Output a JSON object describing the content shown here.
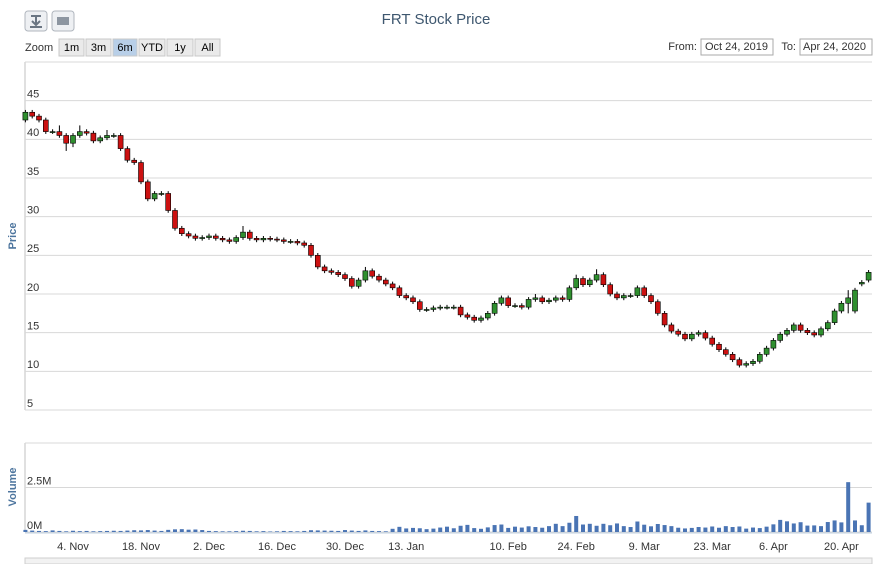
{
  "chart_data": {
    "type": "candlestick",
    "title": "FRT Stock Price",
    "range_selector": {
      "label": "Zoom",
      "buttons": [
        "1m",
        "3m",
        "6m",
        "YTD",
        "1y",
        "All"
      ],
      "selected": 2
    },
    "from_label": "From:",
    "from_value": "Oct 24, 2019",
    "to_label": "To:",
    "to_value": "Apr 24, 2020",
    "ylabel": "Price",
    "y2label": "Volume",
    "up_color": "#2f8f2f",
    "down_color": "#cc1111",
    "volume_color": "#4a74b4",
    "grid": true,
    "ylim": [
      5,
      50
    ],
    "yticks": [
      5,
      10,
      15,
      20,
      25,
      30,
      35,
      40,
      45
    ],
    "y2lim": [
      0,
      5000000
    ],
    "y2ticks": [
      {
        "value": 0,
        "label": "0M"
      },
      {
        "value": 2500000,
        "label": "2.5M"
      }
    ],
    "categories": [
      null,
      null,
      null,
      null,
      null,
      null,
      null,
      "4. Nov",
      null,
      null,
      null,
      null,
      null,
      null,
      null,
      null,
      null,
      "18. Nov",
      null,
      null,
      null,
      null,
      null,
      null,
      null,
      null,
      null,
      "2. Dec",
      null,
      null,
      null,
      null,
      null,
      null,
      null,
      null,
      null,
      "16. Dec",
      null,
      null,
      null,
      null,
      null,
      null,
      null,
      null,
      null,
      "30. Dec",
      null,
      null,
      null,
      null,
      null,
      null,
      null,
      null,
      "13. Jan",
      null,
      null,
      null,
      null,
      null,
      null,
      null,
      null,
      null,
      null,
      null,
      null,
      null,
      null,
      "10. Feb",
      null,
      null,
      null,
      null,
      null,
      null,
      null,
      null,
      null,
      "24. Feb",
      null,
      null,
      null,
      null,
      null,
      null,
      null,
      null,
      null,
      "9. Mar",
      null,
      null,
      null,
      null,
      null,
      null,
      null,
      null,
      null,
      "23. Mar",
      null,
      null,
      null,
      null,
      null,
      null,
      null,
      null,
      "6. Apr",
      null,
      null,
      null,
      null,
      null,
      null,
      null,
      null,
      null,
      "20. Apr",
      null,
      null,
      null,
      null
    ],
    "open": [
      42.5,
      43.5,
      43,
      42.5,
      41,
      41,
      40.5,
      39.5,
      40.5,
      41,
      40.8,
      39.8,
      40.2,
      40.5,
      40.5,
      38.8,
      37.3,
      37,
      34.5,
      32.3,
      33,
      33,
      30.8,
      28.5,
      27.8,
      27.5,
      27.2,
      27.3,
      27.5,
      27.2,
      27,
      26.8,
      27.3,
      28,
      27.2,
      27,
      27.2,
      27.1,
      27,
      26.8,
      26.8,
      26.6,
      26.3,
      25,
      23.5,
      23,
      22.8,
      22.5,
      22,
      21,
      21.8,
      23,
      22.3,
      21.8,
      21.3,
      20.8,
      19.8,
      19.5,
      19,
      18,
      18,
      18.2,
      18.3,
      18.3,
      18.3,
      17.3,
      17,
      16.6,
      16.9,
      17.5,
      18.8,
      19.5,
      18.5,
      18.5,
      18.3,
      19.3,
      19.5,
      19,
      19.2,
      19.5,
      19.3,
      20.8,
      22,
      21.2,
      21.8,
      22.5,
      21.2,
      20,
      19.5,
      19.8,
      19.8,
      20.8,
      19.8,
      19,
      17.5,
      16,
      15.2,
      14.8,
      14.2,
      14.8,
      15,
      14.3,
      13.5,
      12.8,
      12.2,
      11.5,
      10.8,
      11,
      11.3,
      12.2,
      13,
      14,
      14.8,
      15.3,
      16,
      15.3,
      15,
      14.7,
      15.5,
      16.3,
      17.8,
      18.8,
      17.8,
      21.3,
      21.8
    ],
    "high": [
      43.8,
      43.8,
      43.3,
      42.8,
      41.3,
      41.8,
      40.8,
      40.8,
      41.8,
      41.3,
      41.1,
      40.5,
      41.2,
      40.8,
      40.8,
      39.1,
      37.6,
      37.3,
      34.8,
      33.3,
      33.3,
      33.3,
      31.1,
      28.8,
      28.1,
      27.8,
      27.6,
      27.8,
      27.8,
      27.5,
      27.3,
      27.6,
      28.8,
      28.3,
      27.5,
      27.5,
      27.5,
      27.4,
      27.3,
      27.1,
      27.1,
      26.9,
      26.6,
      25.3,
      23.8,
      23.3,
      23.1,
      22.8,
      22.3,
      22.1,
      23.5,
      23.3,
      22.6,
      22.1,
      21.6,
      21.1,
      20.1,
      19.8,
      19.3,
      18.3,
      18.5,
      18.6,
      18.6,
      18.6,
      18.6,
      17.6,
      17.3,
      17.2,
      17.8,
      19.1,
      19.8,
      19.8,
      18.8,
      18.8,
      19.6,
      20,
      19.8,
      19.5,
      19.8,
      19.8,
      21.1,
      22.5,
      22.3,
      22.1,
      23.2,
      22.8,
      21.5,
      20.3,
      20.1,
      20.1,
      21.1,
      21.1,
      20.1,
      19.3,
      17.8,
      16.3,
      15.5,
      15.1,
      15.1,
      15.3,
      15.3,
      14.6,
      13.8,
      13.1,
      12.5,
      11.8,
      11.3,
      11.6,
      12.5,
      13.3,
      14.3,
      15.1,
      15.6,
      16.3,
      16.3,
      15.6,
      15.3,
      15.8,
      16.6,
      18.1,
      19.1,
      20.5,
      20.8,
      21.8,
      23.1
    ],
    "low": [
      42.2,
      42.7,
      42.2,
      40.7,
      40.7,
      40.2,
      38.5,
      39,
      40.2,
      40.5,
      39.5,
      39.5,
      39.9,
      40.2,
      38.5,
      37,
      36.7,
      34.2,
      32,
      32,
      32.7,
      30.5,
      28.2,
      27.5,
      27.2,
      26.9,
      26.9,
      27,
      26.9,
      26.7,
      26.5,
      26.5,
      27,
      26.9,
      26.7,
      26.7,
      26.8,
      26.7,
      26.5,
      26.5,
      26.3,
      26,
      24.7,
      23.2,
      22.7,
      22.5,
      22.2,
      21.7,
      20.7,
      20.7,
      21.5,
      22,
      21.5,
      21,
      20.5,
      19.5,
      19.2,
      18.7,
      17.7,
      17.7,
      17.7,
      17.9,
      18,
      18,
      17,
      16.7,
      16.3,
      16.3,
      16.6,
      17.2,
      18.5,
      18.2,
      18.2,
      18,
      18,
      19,
      18.7,
      18.7,
      18.9,
      19,
      19,
      20.5,
      20.9,
      20.9,
      21.5,
      20.9,
      19.7,
      19.2,
      19.2,
      19.5,
      19.5,
      19.5,
      18.7,
      17.2,
      15.7,
      14.9,
      14.5,
      13.9,
      13.9,
      14.5,
      14,
      13.2,
      12.5,
      11.9,
      11.2,
      10.5,
      10.5,
      10.7,
      11,
      11.9,
      12.7,
      13.7,
      14.5,
      15,
      15,
      14.7,
      14.4,
      14.4,
      15.2,
      16,
      17.5,
      17.5,
      17.5,
      21,
      21.5
    ],
    "close": [
      43.5,
      43,
      42.5,
      41,
      41,
      40.5,
      39.5,
      40.5,
      41,
      40.8,
      39.8,
      40.2,
      40.5,
      40.5,
      38.8,
      37.3,
      37,
      34.5,
      32.3,
      33,
      33,
      30.8,
      28.5,
      27.8,
      27.5,
      27.2,
      27.3,
      27.5,
      27.2,
      27,
      26.8,
      27.3,
      28,
      27.2,
      27,
      27.2,
      27.1,
      27,
      26.8,
      26.8,
      26.6,
      26.3,
      25,
      23.5,
      23,
      22.8,
      22.5,
      22,
      21,
      21.8,
      23,
      22.3,
      21.8,
      21.3,
      20.8,
      19.8,
      19.5,
      19,
      18,
      18,
      18.2,
      18.3,
      18.3,
      18.3,
      17.3,
      17,
      16.6,
      16.9,
      17.5,
      18.8,
      19.5,
      18.5,
      18.5,
      18.3,
      19.3,
      19.5,
      19,
      19.2,
      19.5,
      19.3,
      20.8,
      22,
      21.2,
      21.8,
      22.5,
      21.2,
      20,
      19.5,
      19.8,
      19.8,
      20.8,
      19.8,
      19,
      17.5,
      16,
      15.2,
      14.8,
      14.2,
      14.8,
      15,
      14.3,
      13.5,
      12.8,
      12.2,
      11.5,
      10.8,
      11,
      11.3,
      12.2,
      13,
      14,
      14.8,
      15.3,
      16,
      15.3,
      15,
      14.7,
      15.5,
      16.3,
      17.8,
      18.8,
      19.5,
      20.5,
      21.5,
      22.8
    ],
    "volume": [
      120000,
      80000,
      60000,
      50000,
      90000,
      60000,
      40000,
      70000,
      50000,
      60000,
      40000,
      50000,
      60000,
      70000,
      60000,
      80000,
      100000,
      90000,
      110000,
      80000,
      60000,
      120000,
      150000,
      160000,
      130000,
      140000,
      110000,
      60000,
      50000,
      40000,
      40000,
      50000,
      70000,
      60000,
      40000,
      50000,
      30000,
      40000,
      60000,
      50000,
      40000,
      60000,
      100000,
      90000,
      80000,
      70000,
      60000,
      110000,
      80000,
      60000,
      90000,
      60000,
      50000,
      40000,
      180000,
      290000,
      200000,
      230000,
      210000,
      160000,
      190000,
      250000,
      300000,
      210000,
      350000,
      400000,
      220000,
      180000,
      260000,
      390000,
      420000,
      230000,
      300000,
      250000,
      320000,
      280000,
      240000,
      330000,
      460000,
      330000,
      520000,
      900000,
      420000,
      460000,
      350000,
      460000,
      380000,
      480000,
      330000,
      280000,
      590000,
      410000,
      320000,
      450000,
      390000,
      330000,
      240000,
      200000,
      230000,
      280000,
      250000,
      310000,
      240000,
      330000,
      280000,
      310000,
      190000,
      250000,
      220000,
      300000,
      430000,
      680000,
      600000,
      480000,
      550000,
      360000,
      370000,
      330000,
      560000,
      650000,
      540000,
      2800000,
      650000,
      380000,
      1650000
    ]
  }
}
